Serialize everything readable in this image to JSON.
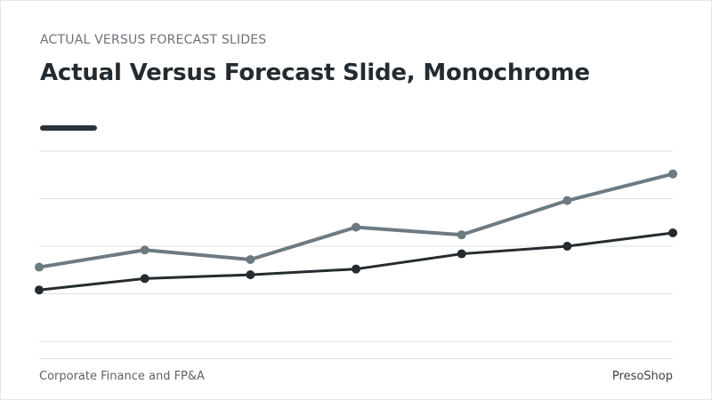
{
  "slide": {
    "eyebrow": "ACTUAL VERSUS FORECAST SLIDES",
    "title": "Actual Versus Forecast Slide, Monochrome",
    "footer_left": "Corporate Finance and FP&A",
    "footer_right": "PresoShop"
  },
  "colors": {
    "background": "#ffffff",
    "title": "#242b30",
    "series_light": "#6e7a82",
    "series_dark": "#252c30",
    "gridline": "#dcdfe2"
  },
  "chart_data": {
    "type": "line",
    "x": [
      1,
      2,
      3,
      4,
      5,
      6,
      7
    ],
    "ylim": [
      0,
      100
    ],
    "grid": true,
    "series": [
      {
        "values": [
          39,
          48,
          43,
          60,
          56,
          74,
          88
        ],
        "color": "#6e7a82"
      },
      {
        "values": [
          27,
          33,
          35,
          38,
          46,
          50,
          57
        ],
        "color": "#252c30"
      }
    ]
  }
}
